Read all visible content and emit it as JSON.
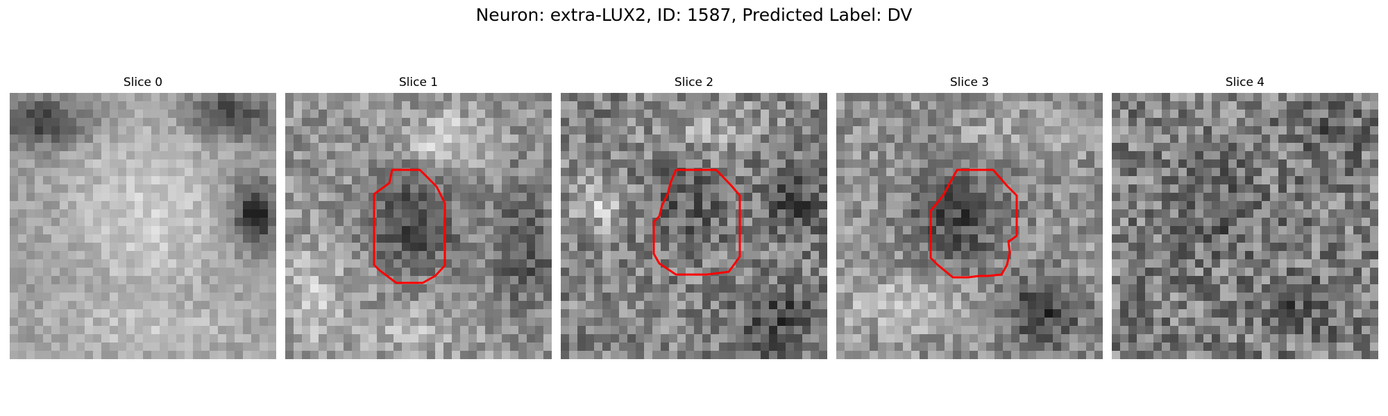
{
  "figure": {
    "title": "Neuron: extra-LUX2, ID: 1587, Predicted Label: DV"
  },
  "panels": [
    {
      "title": "Slice 0"
    },
    {
      "title": "Slice 1"
    },
    {
      "title": "Slice 2"
    },
    {
      "title": "Slice 3"
    },
    {
      "title": "Slice 4"
    }
  ],
  "colors": {
    "contour": "#ff0000",
    "background": "#ffffff"
  }
}
